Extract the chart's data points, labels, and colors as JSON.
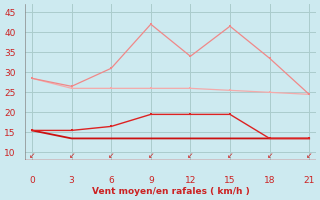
{
  "x": [
    0,
    3,
    6,
    9,
    12,
    15,
    18,
    21
  ],
  "line1": [
    28.5,
    26.5,
    31.0,
    42.0,
    34.0,
    41.5,
    33.5,
    24.5
  ],
  "line2": [
    28.5,
    26.0,
    26.0,
    26.0,
    26.0,
    25.5,
    25.0,
    24.5
  ],
  "line3": [
    15.5,
    15.5,
    16.5,
    19.5,
    19.5,
    19.5,
    13.5,
    13.5
  ],
  "line4": [
    15.5,
    13.5,
    13.5,
    13.5,
    13.5,
    13.5,
    13.5,
    13.5
  ],
  "line1_color": "#f08888",
  "line2_color": "#f4aaaa",
  "line3_color": "#dd2222",
  "line4_color": "#cc1111",
  "bg_color": "#cdeaf0",
  "grid_color": "#aacccc",
  "tick_arrow_color": "#cc2222",
  "xlabel": "Vent moyen/en rafales ( km/h )",
  "xlabel_color": "#cc2222",
  "tick_label_color": "#cc2222",
  "ylabel_color": "#cc2222",
  "ylim": [
    8,
    47
  ],
  "xlim": [
    -0.5,
    21.5
  ],
  "yticks": [
    10,
    15,
    20,
    25,
    30,
    35,
    40,
    45
  ],
  "xticks": [
    0,
    3,
    6,
    9,
    12,
    15,
    18,
    21
  ]
}
